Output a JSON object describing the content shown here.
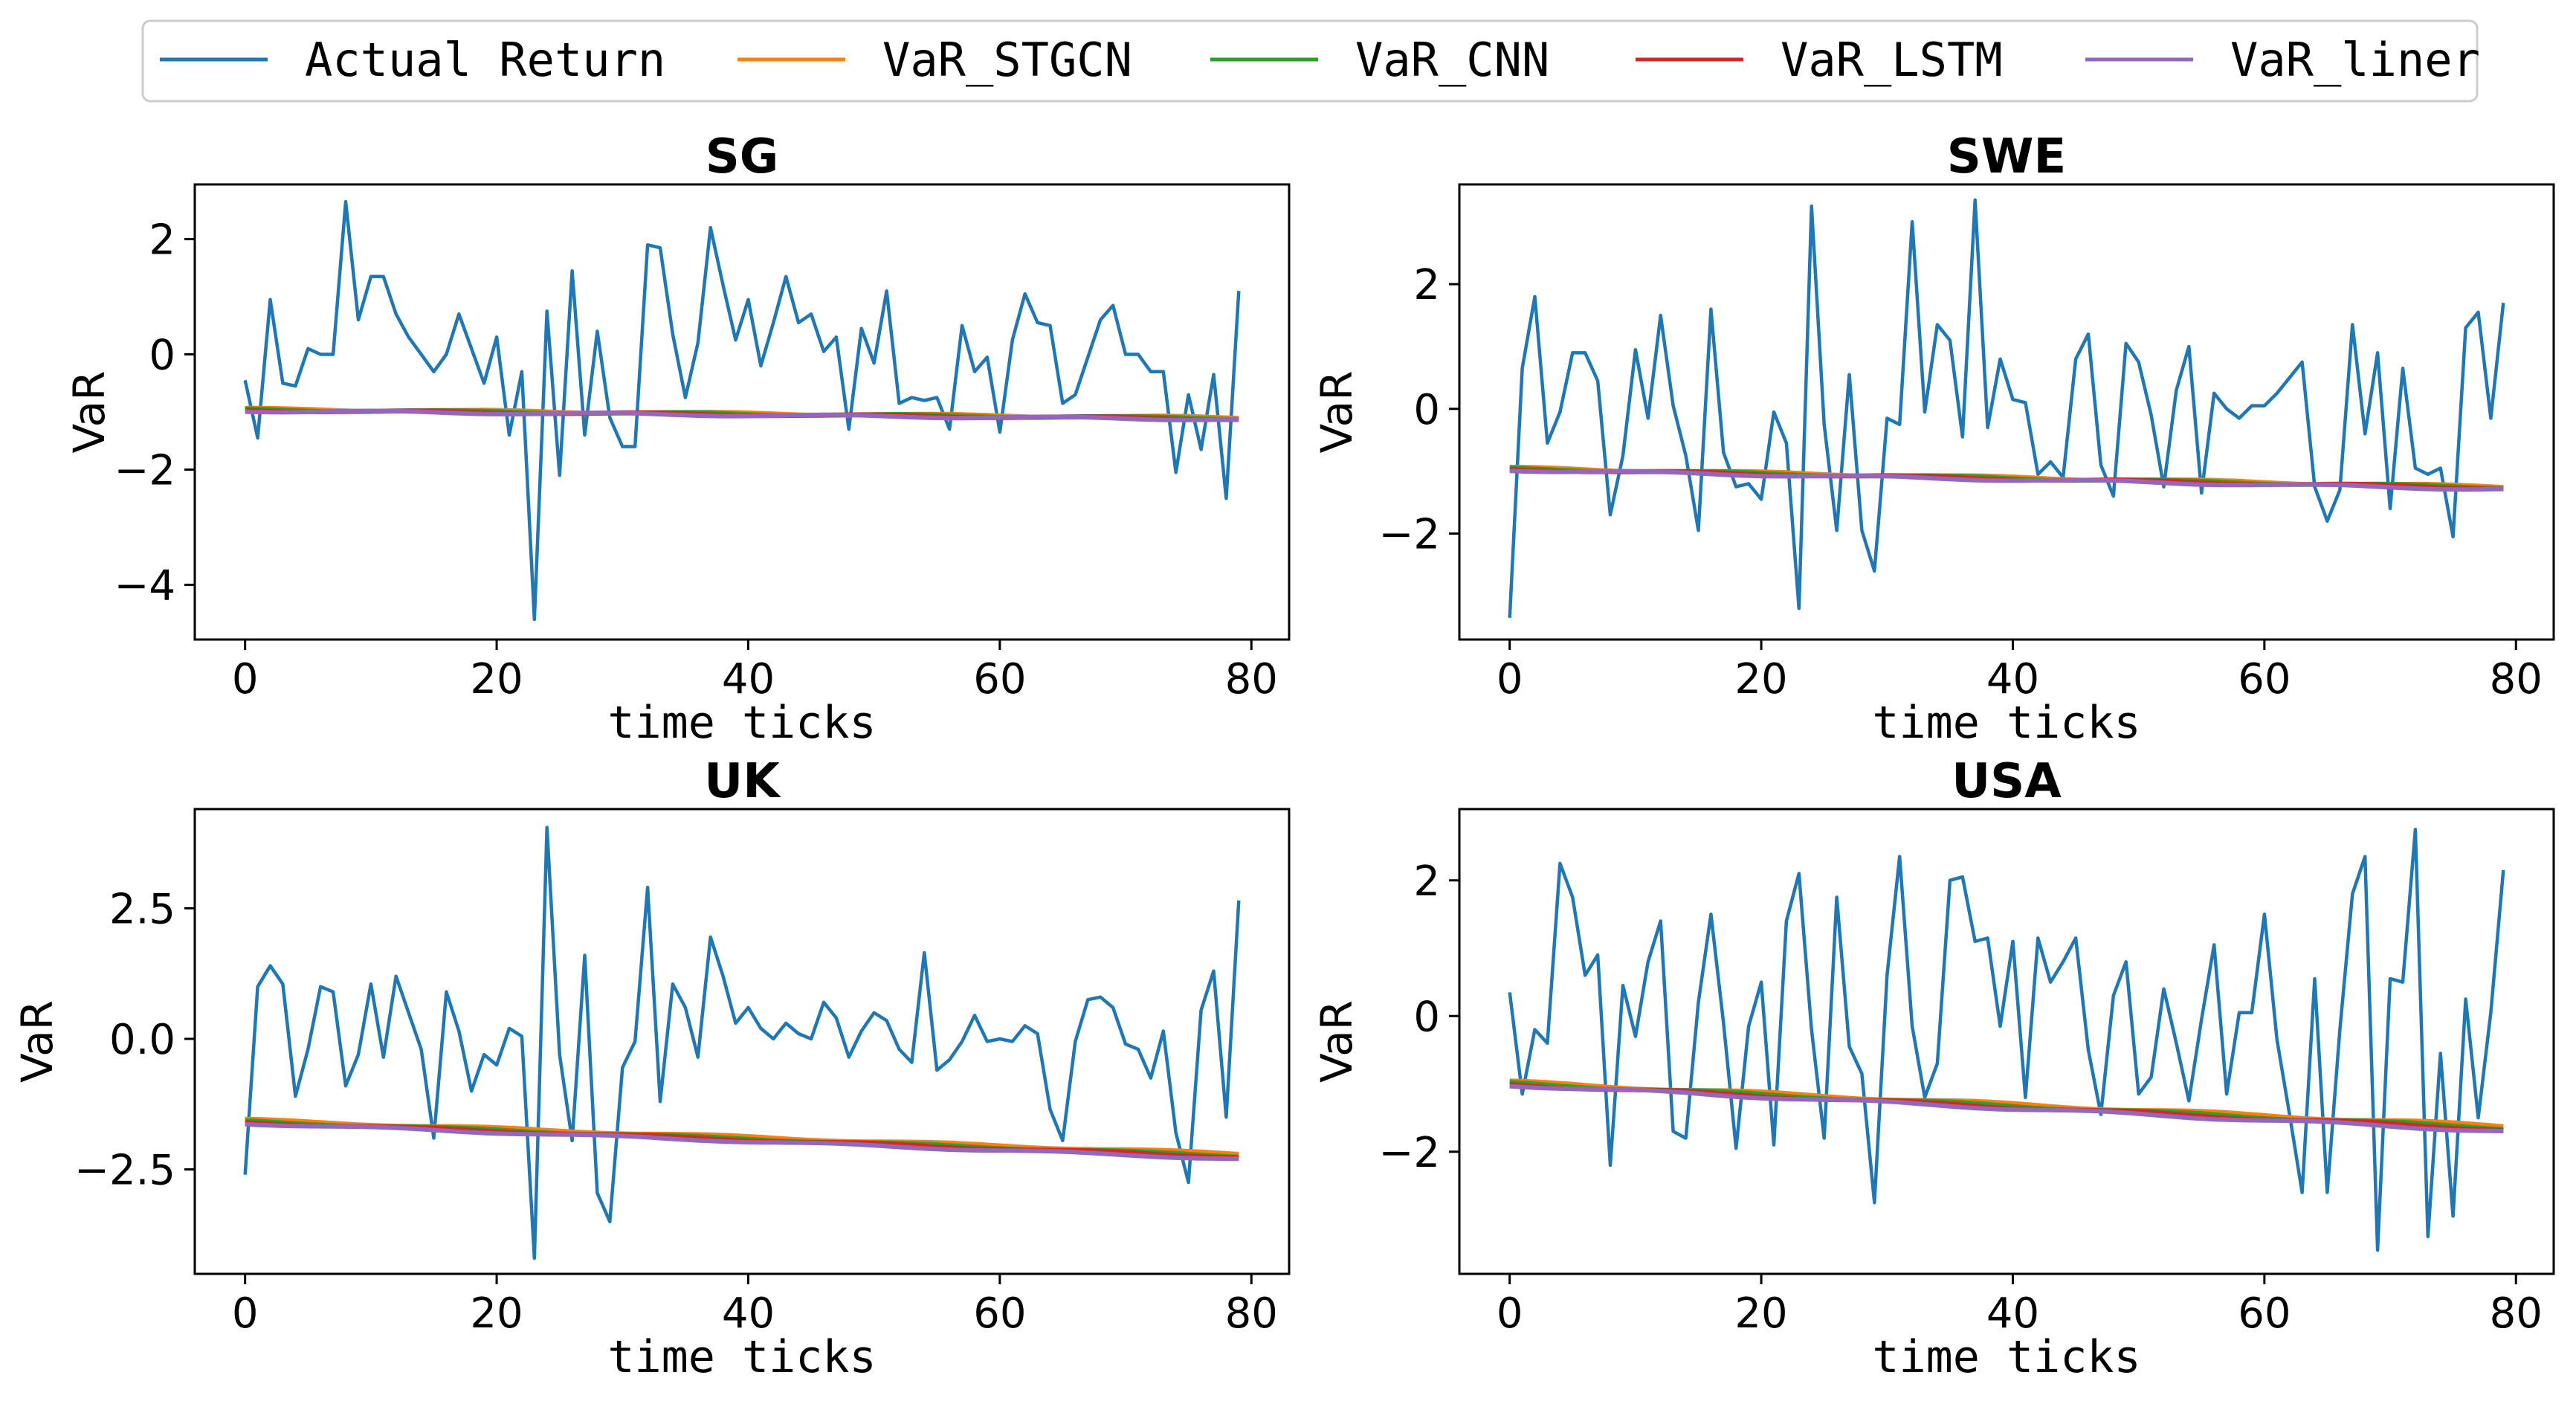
{
  "colors": {
    "actual": "#1f77b4",
    "stgcn": "#ff7f0e",
    "cnn": "#2ca02c",
    "lstm": "#d62728",
    "liner": "#9467bd"
  },
  "legend": [
    "Actual Return",
    "VaR_STGCN",
    "VaR_CNN",
    "VaR_LSTM",
    "VaR_liner"
  ],
  "chart_data": [
    {
      "type": "line",
      "title": "SG",
      "xlabel": "time ticks",
      "ylabel": "VaR",
      "xlim": [
        -4,
        83
      ],
      "ylim": [
        -4.95,
        2.95
      ],
      "xticks": [
        0,
        20,
        40,
        60,
        80
      ],
      "yticks": [
        2,
        0,
        -2,
        -4
      ],
      "ytick_labels": [
        "2",
        "0",
        "−2",
        "−4"
      ],
      "series": [
        {
          "name": "Actual Return",
          "values": [
            -0.45,
            -1.45,
            0.95,
            -0.5,
            -0.55,
            0.1,
            0.0,
            0.0,
            2.65,
            0.6,
            1.35,
            1.35,
            0.7,
            0.3,
            0.0,
            -0.3,
            0.0,
            0.7,
            0.1,
            -0.5,
            0.3,
            -1.4,
            -0.3,
            -4.6,
            0.75,
            -2.1,
            1.45,
            -1.4,
            0.4,
            -1.1,
            -1.6,
            -1.6,
            1.9,
            1.85,
            0.35,
            -0.75,
            0.2,
            2.2,
            1.2,
            0.25,
            0.95,
            -0.2,
            0.55,
            1.35,
            0.55,
            0.7,
            0.05,
            0.3,
            -1.3,
            0.45,
            -0.15,
            1.1,
            -0.85,
            -0.75,
            -0.8,
            -0.75,
            -1.3,
            0.5,
            -0.3,
            -0.05,
            -1.35,
            0.25,
            1.05,
            0.55,
            0.5,
            -0.85,
            -0.7,
            -0.05,
            0.6,
            0.85,
            0.0,
            0.0,
            -0.3,
            -0.3,
            -2.05,
            -0.7,
            -1.65,
            -0.35,
            -2.5,
            1.1
          ]
        },
        {
          "name": "VaR_STGCN",
          "start": -0.95,
          "end": -1.1
        },
        {
          "name": "VaR_CNN",
          "start": -0.96,
          "end": -1.11
        },
        {
          "name": "VaR_LSTM",
          "start": -0.97,
          "end": -1.12
        },
        {
          "name": "VaR_liner",
          "start": -0.98,
          "end": -1.13
        }
      ]
    },
    {
      "type": "line",
      "title": "SWE",
      "xlabel": "time ticks",
      "ylabel": "VaR",
      "xlim": [
        -4,
        83
      ],
      "ylim": [
        -3.7,
        3.6
      ],
      "xticks": [
        0,
        20,
        40,
        60,
        80
      ],
      "yticks": [
        2,
        0,
        -2
      ],
      "ytick_labels": [
        "2",
        "0",
        "−2"
      ],
      "series": [
        {
          "name": "Actual Return",
          "values": [
            -3.35,
            0.65,
            1.8,
            -0.55,
            -0.05,
            0.9,
            0.9,
            0.45,
            -1.7,
            -0.75,
            0.95,
            -0.15,
            1.5,
            0.05,
            -0.75,
            -1.95,
            1.6,
            -0.7,
            -1.25,
            -1.2,
            -1.45,
            -0.05,
            -0.55,
            -3.2,
            3.25,
            -0.25,
            -1.95,
            0.55,
            -1.95,
            -2.6,
            -0.15,
            -0.25,
            3.0,
            -0.05,
            1.35,
            1.1,
            -0.45,
            3.35,
            -0.3,
            0.8,
            0.15,
            0.1,
            -1.05,
            -0.85,
            -1.1,
            0.8,
            1.2,
            -0.9,
            -1.4,
            1.05,
            0.75,
            -0.1,
            -1.25,
            0.3,
            1.0,
            -1.35,
            0.25,
            0.0,
            -0.15,
            0.05,
            0.05,
            0.25,
            0.5,
            0.75,
            -1.25,
            -1.8,
            -1.3,
            1.35,
            -0.4,
            0.9,
            -1.6,
            0.65,
            -0.95,
            -1.05,
            -0.95,
            -2.05,
            1.3,
            1.55,
            -0.15,
            1.7
          ]
        },
        {
          "name": "VaR_STGCN",
          "start": -0.95,
          "end": -1.25
        },
        {
          "name": "VaR_CNN",
          "start": -0.96,
          "end": -1.26
        },
        {
          "name": "VaR_LSTM",
          "start": -0.97,
          "end": -1.27
        },
        {
          "name": "VaR_liner",
          "start": -0.98,
          "end": -1.29
        }
      ]
    },
    {
      "type": "line",
      "title": "UK",
      "xlabel": "time ticks",
      "ylabel": "VaR",
      "xlim": [
        -4,
        83
      ],
      "ylim": [
        -4.5,
        4.4
      ],
      "xticks": [
        0,
        20,
        40,
        60,
        80
      ],
      "yticks": [
        2.5,
        0,
        -2.5
      ],
      "ytick_labels": [
        "2.5",
        "0.0",
        "−2.5"
      ],
      "series": [
        {
          "name": "Actual Return",
          "values": [
            -2.6,
            1.0,
            1.4,
            1.05,
            -1.1,
            -0.2,
            1.0,
            0.9,
            -0.9,
            -0.3,
            1.05,
            -0.35,
            1.2,
            0.5,
            -0.2,
            -1.9,
            0.9,
            0.15,
            -1.0,
            -0.3,
            -0.5,
            0.2,
            0.05,
            -4.2,
            4.05,
            -0.3,
            -1.95,
            1.6,
            -2.95,
            -3.5,
            -0.55,
            -0.05,
            2.9,
            -1.2,
            1.05,
            0.6,
            -0.35,
            1.95,
            1.2,
            0.3,
            0.6,
            0.2,
            0.0,
            0.3,
            0.1,
            0.0,
            0.7,
            0.4,
            -0.35,
            0.15,
            0.5,
            0.35,
            -0.2,
            -0.45,
            1.65,
            -0.6,
            -0.4,
            -0.05,
            0.45,
            -0.05,
            0.0,
            -0.05,
            0.25,
            0.1,
            -1.35,
            -1.95,
            -0.05,
            0.75,
            0.8,
            0.6,
            -0.1,
            -0.2,
            -0.75,
            0.15,
            -1.8,
            -2.75,
            0.55,
            1.3,
            -1.5,
            2.65
          ]
        },
        {
          "name": "VaR_STGCN",
          "start": -1.55,
          "end": -2.2
        },
        {
          "name": "VaR_CNN",
          "start": -1.58,
          "end": -2.24
        },
        {
          "name": "VaR_LSTM",
          "start": -1.6,
          "end": -2.26
        },
        {
          "name": "VaR_liner",
          "start": -1.62,
          "end": -2.3
        }
      ]
    },
    {
      "type": "line",
      "title": "USA",
      "xlabel": "time ticks",
      "ylabel": "VaR",
      "xlim": [
        -4,
        83
      ],
      "ylim": [
        -3.8,
        3.05
      ],
      "xticks": [
        0,
        20,
        40,
        60,
        80
      ],
      "yticks": [
        2,
        0,
        -2
      ],
      "ytick_labels": [
        "2",
        "0",
        "−2"
      ],
      "series": [
        {
          "name": "Actual Return",
          "values": [
            0.35,
            -1.15,
            -0.2,
            -0.4,
            2.25,
            1.75,
            0.6,
            0.9,
            -2.2,
            0.45,
            -0.3,
            0.8,
            1.4,
            -1.7,
            -1.8,
            0.2,
            1.5,
            -0.1,
            -1.95,
            -0.15,
            0.5,
            -1.9,
            1.4,
            2.1,
            -0.2,
            -1.8,
            1.75,
            -0.45,
            -0.85,
            -2.75,
            0.6,
            2.35,
            -0.15,
            -1.2,
            -0.7,
            2.0,
            2.05,
            1.1,
            1.15,
            -0.15,
            1.1,
            -1.2,
            1.15,
            0.5,
            0.8,
            1.15,
            -0.5,
            -1.45,
            0.3,
            0.8,
            -1.15,
            -0.9,
            0.4,
            -0.4,
            -1.25,
            -0.05,
            1.05,
            -1.15,
            0.05,
            0.05,
            1.5,
            -0.35,
            -1.45,
            -2.6,
            0.55,
            -2.6,
            -0.2,
            1.8,
            2.35,
            -3.45,
            0.55,
            0.5,
            2.75,
            -3.25,
            -0.55,
            -2.95,
            0.25,
            -1.5,
            0.05,
            2.15
          ]
        },
        {
          "name": "VaR_STGCN",
          "start": -0.97,
          "end": -1.62
        },
        {
          "name": "VaR_CNN",
          "start": -0.99,
          "end": -1.65
        },
        {
          "name": "VaR_LSTM",
          "start": -1.01,
          "end": -1.67
        },
        {
          "name": "VaR_liner",
          "start": -1.02,
          "end": -1.7
        }
      ]
    }
  ]
}
